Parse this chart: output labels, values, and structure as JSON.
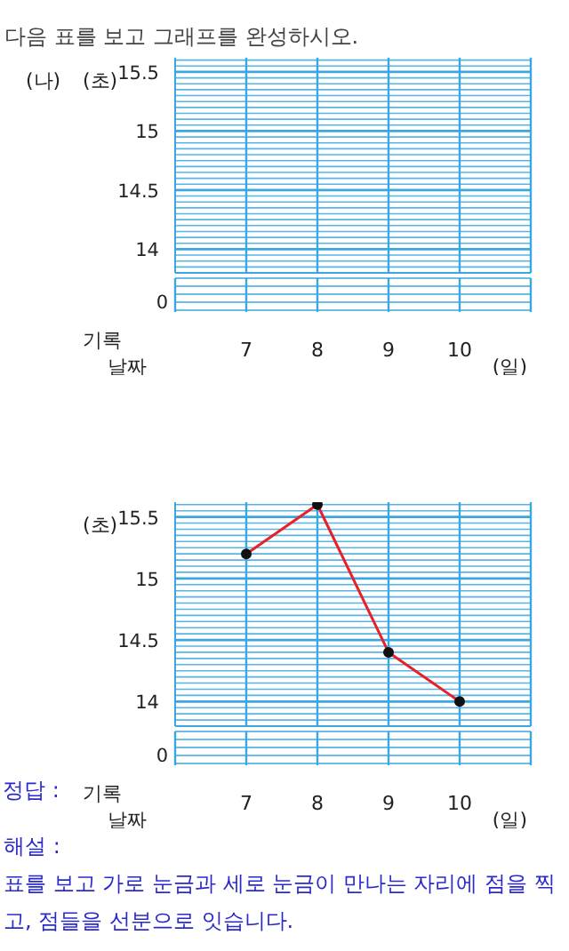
{
  "chart_data": [
    {
      "type": "line",
      "title": "다음 표를 보고 그래프를 완성하시오.",
      "categories": [
        "7",
        "8",
        "9",
        "10"
      ],
      "xlabel": "(일)",
      "ylabel": "(초)",
      "ylim": [
        13.8,
        15.62
      ],
      "grid": true,
      "yticks": [
        {
          "value": 13.85,
          "label": null
        },
        {
          "value": 13.9,
          "label": null
        },
        {
          "value": 13.95,
          "label": null
        },
        14,
        {
          "value": 14.05,
          "label": null
        },
        {
          "value": 14.1,
          "label": null
        },
        {
          "value": 14.15,
          "label": null
        },
        {
          "value": 14.2,
          "label": null
        },
        {
          "value": 14.25,
          "label": null
        },
        {
          "value": 14.3,
          "label": null
        },
        {
          "value": 14.35,
          "label": null
        },
        {
          "value": 14.4,
          "label": null
        },
        {
          "value": 14.45,
          "label": null
        },
        14.5,
        {
          "value": 14.55,
          "label": null
        },
        {
          "value": 14.6,
          "label": null
        },
        {
          "value": 14.65,
          "label": null
        },
        {
          "value": 14.7,
          "label": null
        },
        {
          "value": 14.75,
          "label": null
        },
        {
          "value": 14.8,
          "label": null
        },
        {
          "value": 14.85,
          "label": null
        },
        {
          "value": 14.9,
          "label": null
        },
        {
          "value": 14.95,
          "label": null
        },
        15,
        {
          "value": 15.05,
          "label": null
        },
        {
          "value": 15.1,
          "label": null
        },
        {
          "value": 15.15,
          "label": null
        },
        {
          "value": 15.2,
          "label": null
        },
        {
          "value": 15.25,
          "label": null
        },
        {
          "value": 15.3,
          "label": null
        },
        {
          "value": 15.35,
          "label": null
        },
        {
          "value": 15.4,
          "label": null
        },
        {
          "value": 15.45,
          "label": null
        },
        15.5,
        {
          "value": 15.55,
          "label": null
        },
        {
          "value": 15.6,
          "label": null
        }
      ],
      "series": [
        {
          "color": "#e8202a",
          "values": [
            null,
            null,
            null,
            null
          ]
        }
      ],
      "annotations": [
        "0",
        "기록",
        "날짜",
        "(나)"
      ]
    },
    {
      "type": "line",
      "categories": [
        "7",
        "8",
        "9",
        "10"
      ],
      "xlabel": "(일)",
      "ylabel": "(초)",
      "ylim": [
        13.8,
        15.62
      ],
      "grid": true,
      "marker": "circle",
      "yticks": [
        {
          "value": 13.85,
          "label": null
        },
        {
          "value": 13.9,
          "label": null
        },
        {
          "value": 13.95,
          "label": null
        },
        14,
        {
          "value": 14.05,
          "label": null
        },
        {
          "value": 14.1,
          "label": null
        },
        {
          "value": 14.15,
          "label": null
        },
        {
          "value": 14.2,
          "label": null
        },
        {
          "value": 14.25,
          "label": null
        },
        {
          "value": 14.3,
          "label": null
        },
        {
          "value": 14.35,
          "label": null
        },
        {
          "value": 14.4,
          "label": null
        },
        {
          "value": 14.45,
          "label": null
        },
        14.5,
        {
          "value": 14.55,
          "label": null
        },
        {
          "value": 14.6,
          "label": null
        },
        {
          "value": 14.65,
          "label": null
        },
        {
          "value": 14.7,
          "label": null
        },
        {
          "value": 14.75,
          "label": null
        },
        {
          "value": 14.8,
          "label": null
        },
        {
          "value": 14.85,
          "label": null
        },
        {
          "value": 14.9,
          "label": null
        },
        {
          "value": 14.95,
          "label": null
        },
        15,
        {
          "value": 15.05,
          "label": null
        },
        {
          "value": 15.1,
          "label": null
        },
        {
          "value": 15.15,
          "label": null
        },
        {
          "value": 15.2,
          "label": null
        },
        {
          "value": 15.25,
          "label": null
        },
        {
          "value": 15.3,
          "label": null
        },
        {
          "value": 15.35,
          "label": null
        },
        {
          "value": 15.4,
          "label": null
        },
        {
          "value": 15.45,
          "label": null
        },
        15.5,
        {
          "value": 15.55,
          "label": null
        },
        {
          "value": 15.6,
          "label": null
        }
      ],
      "series": [
        {
          "color": "#e8202a",
          "values": [
            15.2,
            15.6,
            14.4,
            14.0
          ]
        }
      ],
      "annotations": [
        "0",
        "기록",
        "날짜",
        "정답 :",
        "해설 :",
        "표를 보고 가로 눈금과 세로 눈금이 만나는 자리에 점을 찍고, 점들을 선분으로 잇습니다."
      ]
    }
  ]
}
